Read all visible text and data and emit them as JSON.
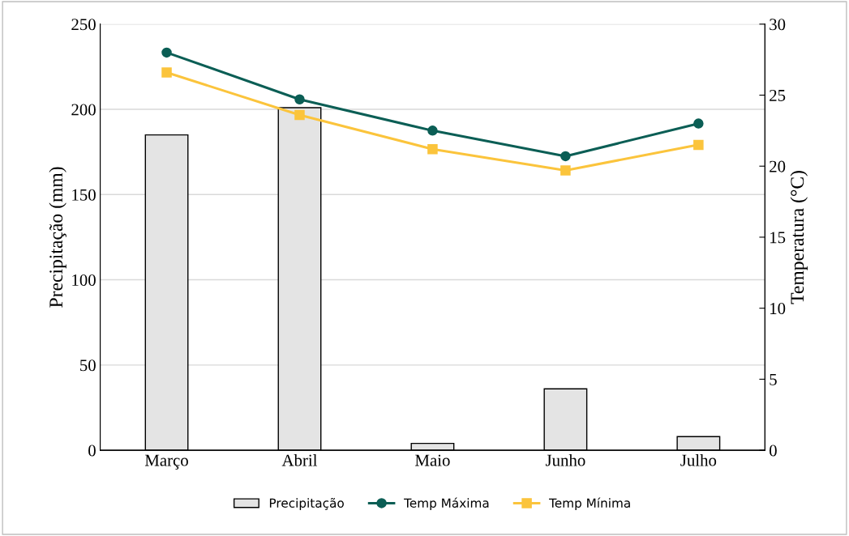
{
  "chart_data": {
    "type": "bar",
    "categories": [
      "Março",
      "Abril",
      "Maio",
      "Junho",
      "Julho"
    ],
    "ylabel": "Precipitação (mm)",
    "y2label": "Temperatura (°C)",
    "ylim": [
      0,
      250
    ],
    "yticks": [
      0,
      50,
      100,
      150,
      200,
      250
    ],
    "y2lim": [
      0,
      30
    ],
    "y2ticks": [
      0,
      5,
      10,
      15,
      20,
      25,
      30
    ],
    "grid": "y",
    "legend": "bottom",
    "series": [
      {
        "name": "Precipitação",
        "color": "#e4e4e4",
        "values": [
          185,
          201,
          4,
          36,
          8
        ]
      },
      {
        "name": "Temp Máxima",
        "type": "line",
        "axis": "y2",
        "marker": "circle",
        "color": "#0b5e55",
        "values": [
          28.0,
          24.7,
          22.5,
          20.7,
          23.0
        ]
      },
      {
        "name": "Temp Mínima",
        "type": "line",
        "axis": "y2",
        "marker": "square",
        "color": "#fbc43c",
        "values": [
          26.6,
          23.6,
          21.2,
          19.7,
          21.5
        ]
      }
    ]
  }
}
